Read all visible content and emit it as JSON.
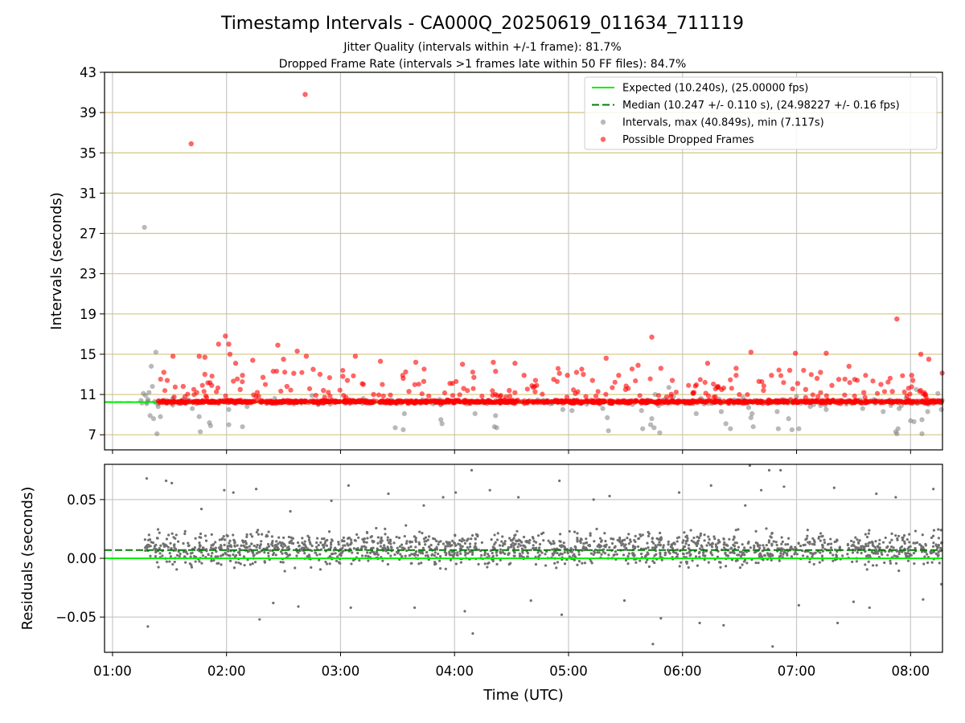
{
  "chart_data": [
    {
      "id": "intervals",
      "type": "scatter",
      "title": "Timestamp Intervals - CA000Q_20250619_011634_711119",
      "subtitle_1": "Jitter Quality (intervals within +/-1 frame): 81.7%",
      "subtitle_2": "Dropped Frame Rate (intervals >1 frames late within 50 FF files): 84.7%",
      "ylabel": "Intervals (seconds)",
      "xlim_hours": [
        0.93,
        8.28
      ],
      "ylim": [
        5.5,
        43
      ],
      "yticks": [
        7,
        11,
        15,
        19,
        23,
        27,
        31,
        35,
        39,
        43
      ],
      "grid": true,
      "legend_position": "top-right",
      "series": [
        {
          "name": "Expected (10.240s), (25.00000 fps)",
          "kind": "hline",
          "y": 10.24,
          "color": "#00ee00",
          "style": "solid"
        },
        {
          "name": "Median (10.247 +/- 0.110 s), (24.98227 +/- 0.16 fps)",
          "kind": "hline",
          "y": 10.247,
          "color": "#007f00",
          "style": "dashed"
        },
        {
          "name": "Intervals, max (40.849s), min (7.117s)",
          "kind": "scatter",
          "color": "#808080",
          "points": [
            [
              1.28,
              27.6
            ],
            [
              1.29,
              10.9
            ],
            [
              1.3,
              10.1
            ],
            [
              1.31,
              10.5
            ],
            [
              1.32,
              11.2
            ],
            [
              1.33,
              8.9
            ],
            [
              1.34,
              13.8
            ],
            [
              1.35,
              11.8
            ],
            [
              1.36,
              8.6
            ],
            [
              1.37,
              10.3
            ],
            [
              1.38,
              15.2
            ],
            [
              1.39,
              7.1
            ],
            [
              1.4,
              9.8
            ],
            [
              1.42,
              8.8
            ],
            [
              1.25,
              10.4
            ],
            [
              1.27,
              11.1
            ],
            [
              1.62,
              10.5
            ],
            [
              1.7,
              9.6
            ],
            [
              1.76,
              8.8
            ],
            [
              1.77,
              7.3
            ],
            [
              1.85,
              8.2
            ],
            [
              1.86,
              7.9
            ],
            [
              2.02,
              9.5
            ],
            [
              2.02,
              8.0
            ],
            [
              2.14,
              7.8
            ],
            [
              2.18,
              9.8
            ],
            [
              2.75,
              10.9
            ],
            [
              3.2,
              10.6
            ],
            [
              3.48,
              7.7
            ],
            [
              3.55,
              7.5
            ],
            [
              3.56,
              9.1
            ],
            [
              3.88,
              8.5
            ],
            [
              3.89,
              8.1
            ],
            [
              4.18,
              9.1
            ],
            [
              4.35,
              7.8
            ],
            [
              4.36,
              8.9
            ],
            [
              4.37,
              7.7
            ],
            [
              4.95,
              9.5
            ],
            [
              5.03,
              9.4
            ],
            [
              5.3,
              9.6
            ],
            [
              5.34,
              8.7
            ],
            [
              5.35,
              7.4
            ],
            [
              5.64,
              9.4
            ],
            [
              5.65,
              7.6
            ],
            [
              5.72,
              8.0
            ],
            [
              5.73,
              8.6
            ],
            [
              5.75,
              7.7
            ],
            [
              5.76,
              11.0
            ],
            [
              5.79,
              9.9
            ],
            [
              5.8,
              7.2
            ],
            [
              5.84,
              10.5
            ],
            [
              5.88,
              11.7
            ],
            [
              5.92,
              10.8
            ],
            [
              6.12,
              9.1
            ],
            [
              6.16,
              10.6
            ],
            [
              6.34,
              9.3
            ],
            [
              6.38,
              8.1
            ],
            [
              6.42,
              7.6
            ],
            [
              6.48,
              10.3
            ],
            [
              6.53,
              10.7
            ],
            [
              6.58,
              9.7
            ],
            [
              6.6,
              8.7
            ],
            [
              6.61,
              9.1
            ],
            [
              6.62,
              7.8
            ],
            [
              6.88,
              10.5
            ],
            [
              6.83,
              9.3
            ],
            [
              6.84,
              7.6
            ],
            [
              6.93,
              8.6
            ],
            [
              6.96,
              7.5
            ],
            [
              7.0,
              10.8
            ],
            [
              7.02,
              7.6
            ],
            [
              7.12,
              9.8
            ],
            [
              7.15,
              10.0
            ],
            [
              7.21,
              9.9
            ],
            [
              7.26,
              9.5
            ],
            [
              7.58,
              9.6
            ],
            [
              7.68,
              10.5
            ],
            [
              7.76,
              9.3
            ],
            [
              7.87,
              7.3
            ],
            [
              7.88,
              7.1
            ],
            [
              7.89,
              7.6
            ],
            [
              7.9,
              9.6
            ],
            [
              7.92,
              9.9
            ],
            [
              7.96,
              10.6
            ],
            [
              8.0,
              8.4
            ],
            [
              8.03,
              8.3
            ],
            [
              8.05,
              11.5
            ],
            [
              8.1,
              8.5
            ],
            [
              8.1,
              7.1
            ],
            [
              8.15,
              9.3
            ],
            [
              8.24,
              11.1
            ],
            [
              8.27,
              9.5
            ]
          ]
        },
        {
          "name": "Possible Dropped Frames",
          "kind": "scatter",
          "color": "#ff0000",
          "points": [
            [
              1.69,
              35.9
            ],
            [
              2.69,
              40.8
            ],
            [
              7.88,
              18.5
            ],
            [
              5.73,
              16.7
            ],
            [
              1.99,
              16.8
            ],
            [
              2.45,
              15.9
            ],
            [
              1.93,
              16.0
            ],
            [
              2.02,
              16.0
            ],
            [
              2.03,
              15.0
            ],
            [
              2.62,
              15.3
            ],
            [
              2.7,
              14.8
            ],
            [
              3.13,
              14.8
            ],
            [
              1.76,
              14.8
            ],
            [
              1.53,
              14.8
            ],
            [
              1.81,
              14.7
            ],
            [
              6.6,
              15.2
            ],
            [
              6.99,
              15.1
            ],
            [
              7.26,
              15.1
            ],
            [
              8.09,
              15.0
            ],
            [
              8.16,
              14.5
            ],
            [
              5.33,
              14.6
            ],
            [
              2.23,
              14.4
            ],
            [
              2.08,
              14.1
            ],
            [
              3.35,
              14.3
            ],
            [
              3.66,
              14.2
            ],
            [
              4.34,
              14.2
            ],
            [
              4.07,
              14.0
            ],
            [
              4.53,
              14.1
            ],
            [
              2.5,
              14.5
            ],
            [
              6.22,
              14.1
            ],
            [
              7.46,
              13.8
            ],
            [
              5.61,
              13.9
            ],
            [
              5.81,
              13.6
            ],
            [
              6.47,
              13.6
            ],
            [
              6.94,
              13.4
            ],
            [
              7.21,
              13.2
            ],
            [
              1.45,
              13.2
            ],
            [
              1.81,
              13.0
            ],
            [
              2.14,
              12.9
            ],
            [
              2.32,
              12.7
            ],
            [
              2.41,
              13.3
            ],
            [
              2.59,
              13.1
            ],
            [
              2.76,
              13.5
            ],
            [
              2.82,
              13.0
            ],
            [
              3.02,
              12.8
            ],
            [
              3.06,
              12.4
            ],
            [
              3.2,
              12.0
            ],
            [
              3.55,
              12.6
            ],
            [
              3.73,
              12.3
            ],
            [
              3.96,
              12.1
            ],
            [
              4.17,
              12.7
            ],
            [
              4.36,
              13.3
            ],
            [
              4.61,
              12.9
            ],
            [
              4.71,
              12.4
            ],
            [
              4.87,
              12.5
            ],
            [
              4.92,
              13.1
            ],
            [
              4.99,
              12.9
            ],
            [
              5.07,
              13.2
            ],
            [
              5.13,
              13.0
            ],
            [
              5.21,
              12.4
            ],
            [
              5.44,
              12.9
            ],
            [
              5.91,
              12.4
            ],
            [
              6.47,
              12.9
            ],
            [
              6.67,
              12.3
            ],
            [
              6.78,
              12.9
            ],
            [
              7.01,
              12.1
            ],
            [
              7.18,
              12.6
            ],
            [
              7.37,
              12.5
            ],
            [
              7.51,
              12.5
            ],
            [
              7.74,
              12.0
            ],
            [
              8.01,
              12.9
            ],
            [
              8.02,
              12.4
            ],
            [
              1.48,
              12.4
            ],
            [
              1.62,
              11.8
            ],
            [
              1.87,
              11.9
            ],
            [
              2.12,
              11.5
            ],
            [
              2.27,
              11.2
            ],
            [
              2.53,
              11.8
            ],
            [
              2.85,
              11.4
            ],
            [
              3.29,
              11.0
            ],
            [
              3.6,
              11.3
            ],
            [
              4.08,
              11.6
            ],
            [
              4.48,
              11.4
            ],
            [
              4.69,
              11.7
            ],
            [
              5.06,
              11.1
            ],
            [
              5.5,
              11.5
            ],
            [
              6.1,
              11.2
            ],
            [
              6.31,
              11.8
            ],
            [
              6.71,
              11.4
            ],
            [
              7.08,
              11.5
            ],
            [
              7.31,
              11.9
            ],
            [
              7.59,
              11.2
            ],
            [
              7.84,
              11.3
            ],
            [
              8.13,
              11.0
            ]
          ]
        }
      ]
    },
    {
      "id": "residuals",
      "type": "scatter",
      "ylabel": "Residuals (seconds)",
      "xlabel": "Time (UTC)",
      "xlim_hours": [
        0.93,
        8.28
      ],
      "ylim": [
        -0.08,
        0.08
      ],
      "yticks": [
        -0.05,
        0.0,
        0.05
      ],
      "ytick_labels": [
        "−0.05",
        "0.00",
        "0.05"
      ],
      "xticks": [
        1,
        2,
        3,
        4,
        5,
        6,
        7,
        8
      ],
      "xtick_labels": [
        "01:00",
        "02:00",
        "03:00",
        "04:00",
        "05:00",
        "06:00",
        "07:00",
        "08:00"
      ],
      "grid": true,
      "series": [
        {
          "name": "Expected",
          "kind": "hline",
          "y": 0.0,
          "color": "#00ee00",
          "style": "solid"
        },
        {
          "name": "Median",
          "kind": "hline",
          "y": 0.007,
          "color": "#007f00",
          "style": "dashed"
        },
        {
          "name": "Residuals",
          "kind": "scatter",
          "color": "#707070",
          "points": [
            [
              1.3,
              0.068
            ],
            [
              1.31,
              -0.058
            ],
            [
              1.47,
              0.066
            ],
            [
              1.52,
              0.064
            ],
            [
              1.78,
              0.042
            ],
            [
              1.98,
              0.058
            ],
            [
              2.06,
              0.056
            ],
            [
              2.26,
              0.059
            ],
            [
              2.29,
              -0.052
            ],
            [
              2.41,
              -0.038
            ],
            [
              2.56,
              0.04
            ],
            [
              2.63,
              -0.041
            ],
            [
              2.92,
              0.049
            ],
            [
              3.09,
              -0.042
            ],
            [
              3.07,
              0.062
            ],
            [
              3.42,
              0.055
            ],
            [
              3.65,
              -0.042
            ],
            [
              3.73,
              0.045
            ],
            [
              3.9,
              0.052
            ],
            [
              4.01,
              0.056
            ],
            [
              4.09,
              -0.045
            ],
            [
              4.15,
              0.075
            ],
            [
              4.16,
              -0.064
            ],
            [
              4.31,
              0.058
            ],
            [
              4.56,
              0.052
            ],
            [
              4.67,
              -0.036
            ],
            [
              4.92,
              0.066
            ],
            [
              4.94,
              -0.048
            ],
            [
              5.22,
              0.05
            ],
            [
              5.36,
              0.053
            ],
            [
              5.49,
              -0.036
            ],
            [
              5.74,
              -0.073
            ],
            [
              5.81,
              -0.051
            ],
            [
              5.97,
              0.056
            ],
            [
              6.15,
              -0.055
            ],
            [
              6.25,
              0.062
            ],
            [
              6.36,
              -0.057
            ],
            [
              6.55,
              0.045
            ],
            [
              6.59,
              0.079
            ],
            [
              6.69,
              0.058
            ],
            [
              6.76,
              0.075
            ],
            [
              6.79,
              -0.075
            ],
            [
              6.86,
              0.075
            ],
            [
              6.89,
              0.061
            ],
            [
              7.02,
              -0.04
            ],
            [
              7.33,
              0.06
            ],
            [
              7.36,
              -0.055
            ],
            [
              7.5,
              -0.037
            ],
            [
              7.64,
              -0.042
            ],
            [
              7.7,
              0.055
            ],
            [
              7.87,
              0.052
            ],
            [
              8.11,
              -0.035
            ],
            [
              8.2,
              0.059
            ],
            [
              8.27,
              -0.022
            ]
          ]
        }
      ]
    }
  ]
}
